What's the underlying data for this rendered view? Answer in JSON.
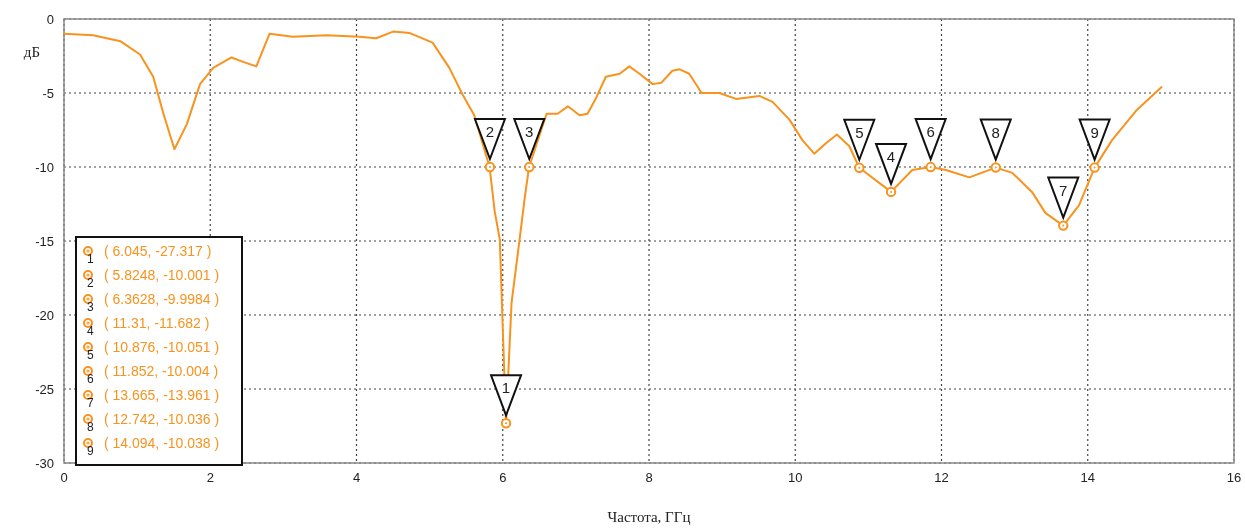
{
  "chart_data": {
    "type": "line",
    "xlabel": "Частота, ГГц",
    "ylabel": "дБ",
    "xlim": [
      0,
      16
    ],
    "xticks": [
      0,
      2,
      4,
      6,
      8,
      10,
      12,
      14,
      16
    ],
    "ylim": [
      -30,
      0
    ],
    "yticks": [
      -30,
      -25,
      -20,
      -15,
      -10,
      -5,
      0
    ],
    "grid": true,
    "line_style": "solid",
    "series": [
      {
        "color": "#f7931e",
        "marker": "none",
        "x": [
          0,
          0.4,
          0.77,
          1.04,
          1.22,
          1.36,
          1.51,
          1.68,
          1.86,
          2.04,
          2.29,
          2.45,
          2.63,
          2.81,
          3.13,
          3.59,
          4.04,
          4.27,
          4.5,
          4.73,
          5.04,
          5.27,
          5.45,
          5.61,
          5.82,
          5.89,
          5.96,
          6.0,
          6.045,
          6.12,
          6.23,
          6.3,
          6.36,
          6.6,
          6.75,
          6.89,
          7.05,
          7.16,
          7.28,
          7.41,
          7.6,
          7.73,
          7.87,
          8.05,
          8.17,
          8.32,
          8.42,
          8.55,
          8.72,
          8.96,
          9.19,
          9.51,
          9.69,
          9.92,
          10.1,
          10.26,
          10.42,
          10.57,
          10.74,
          10.876,
          11.31,
          11.6,
          11.852,
          12.06,
          12.38,
          12.742,
          12.97,
          13.24,
          13.42,
          13.665,
          13.88,
          14.094,
          14.33,
          14.66,
          15.01
        ],
        "values": [
          -1.0,
          -1.1,
          -1.5,
          -2.4,
          -3.9,
          -6.4,
          -8.8,
          -7.1,
          -4.4,
          -3.3,
          -2.6,
          -2.9,
          -3.2,
          -1.0,
          -1.2,
          -1.1,
          -1.2,
          -1.3,
          -0.85,
          -0.95,
          -1.6,
          -3.3,
          -5.1,
          -6.5,
          -10.0,
          -13,
          -14.9,
          -20.9,
          -27.3,
          -19.2,
          -14.9,
          -12.1,
          -10.0,
          -6.4,
          -6.4,
          -5.9,
          -6.5,
          -6.4,
          -5.3,
          -3.9,
          -3.7,
          -3.2,
          -3.7,
          -4.4,
          -4.3,
          -3.5,
          -3.4,
          -3.7,
          -5.0,
          -5.0,
          -5.4,
          -5.2,
          -5.6,
          -6.8,
          -8.2,
          -9.1,
          -8.4,
          -7.8,
          -8.6,
          -10.05,
          -11.68,
          -10.2,
          -10.0,
          -10.2,
          -10.7,
          -10.04,
          -10.4,
          -11.7,
          -13.1,
          -13.96,
          -12.6,
          -10.04,
          -8.2,
          -6.2,
          -4.6
        ]
      },
      {
        "type": "scatter",
        "color": "#f7931e",
        "marker": "circle",
        "x": [
          6.045,
          5.8248,
          6.3628,
          11.31,
          10.876,
          11.852,
          13.665,
          12.742,
          14.094
        ],
        "values": [
          -27.317,
          -10.001,
          -9.9984,
          -11.682,
          -10.051,
          -10.004,
          -13.961,
          -10.036,
          -10.038
        ]
      }
    ],
    "annotations": [
      {
        "text": "1",
        "x": 6.045,
        "y": -27.317
      },
      {
        "text": "2",
        "x": 5.8248,
        "y": -10.001
      },
      {
        "text": "3",
        "x": 6.3628,
        "y": -9.9984
      },
      {
        "text": "4",
        "x": 11.31,
        "y": -11.682
      },
      {
        "text": "5",
        "x": 10.876,
        "y": -10.051
      },
      {
        "text": "6",
        "x": 11.852,
        "y": -10.004
      },
      {
        "text": "7",
        "x": 13.665,
        "y": -13.961
      },
      {
        "text": "8",
        "x": 12.742,
        "y": -10.036
      },
      {
        "text": "9",
        "x": 14.094,
        "y": -10.038
      },
      "( 6.045, -27.317 )",
      "( 5.8248, -10.001 )",
      "( 6.3628, -9.9984 )",
      "( 11.31, -11.682 )",
      "( 10.876, -10.051 )",
      "( 11.852, -10.004 )",
      "( 13.665, -13.961 )",
      "( 12.742, -10.036 )",
      "( 14.094, -10.038 )"
    ]
  }
}
